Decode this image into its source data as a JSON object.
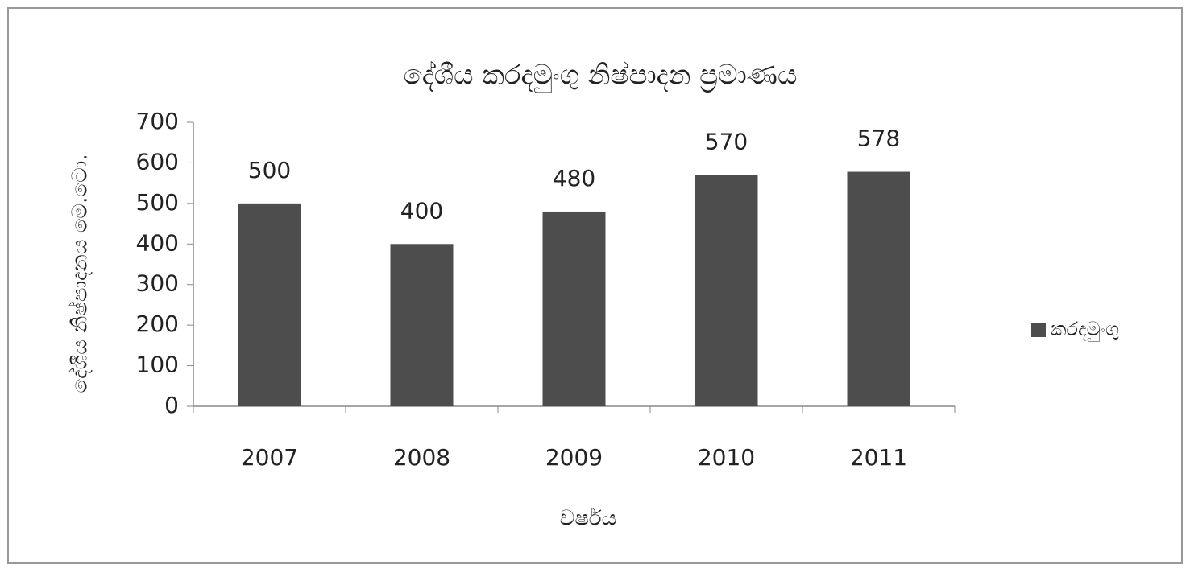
{
  "chart_data": {
    "type": "bar",
    "title": "දේශීය කරදමුංගු නිෂ්පාදන ප්‍රමාණය",
    "x_label": "වර්ෂය",
    "y_label": "දේශීය නිෂ්පාදනය මෙ.ටො.",
    "categories": [
      "2007",
      "2008",
      "2009",
      "2010",
      "2011"
    ],
    "series": [
      {
        "name": "කරදමුංගු",
        "color": "#4d4d4d",
        "values": [
          500,
          400,
          480,
          570,
          578
        ]
      }
    ],
    "ylim": [
      0,
      700
    ],
    "yticks": [
      0,
      100,
      200,
      300,
      400,
      500,
      600,
      700
    ],
    "grid": false,
    "legend": "right"
  }
}
